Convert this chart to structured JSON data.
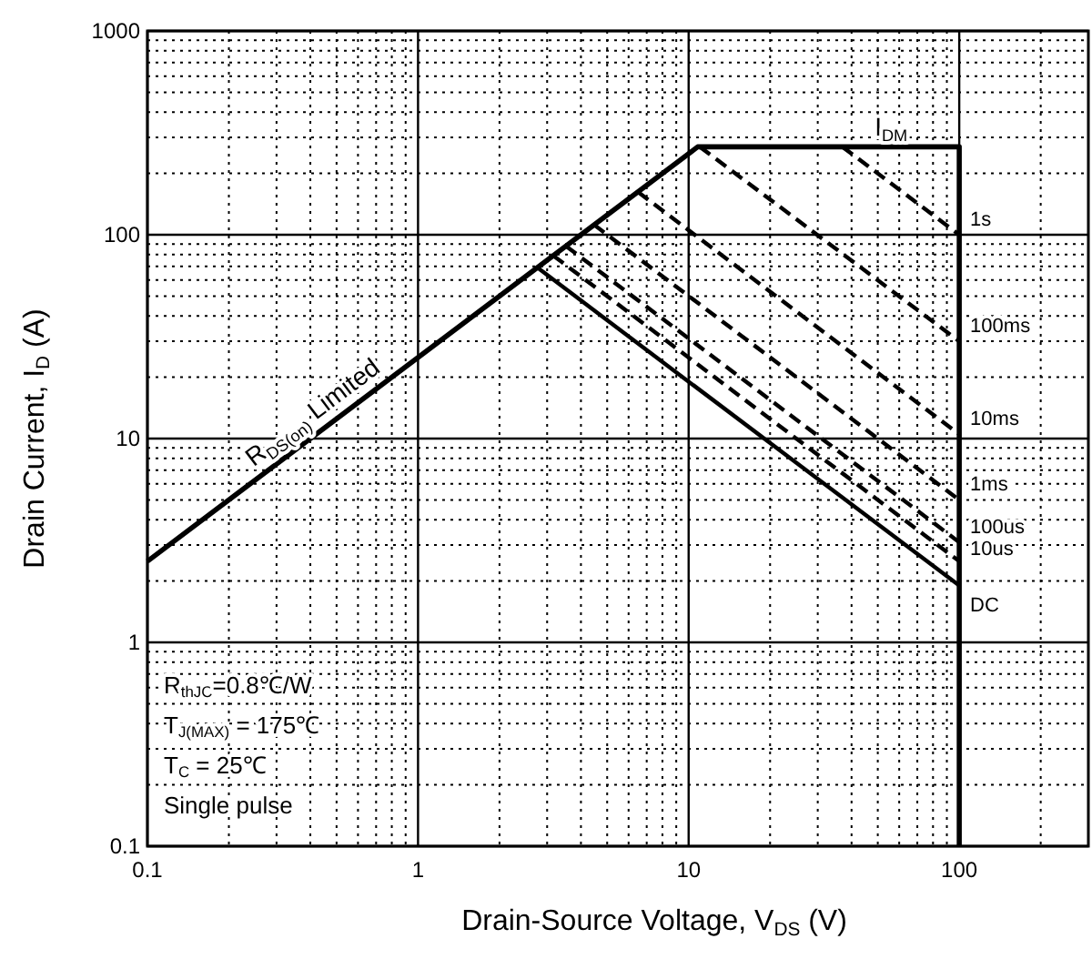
{
  "chart_data": {
    "type": "line",
    "log": "xy",
    "grid": true,
    "xlabel": "Drain-Source Voltage, V$_{DS}$ (V)",
    "ylabel": "Drain Current, I$_{D}$ (A)",
    "xlim": [
      0.1,
      300
    ],
    "ylim": [
      0.1,
      1000
    ],
    "xticks": [
      0.1,
      1,
      10,
      100
    ],
    "yticks": [
      0.1,
      1,
      10,
      100,
      1000
    ],
    "series": [
      {
        "color": "#000000",
        "line_style": "solid",
        "x": [
          0.1,
          10.8,
          100,
          100
        ],
        "values": [
          2.5,
          270,
          270,
          0.1
        ]
      },
      {
        "name": "1s",
        "color": "#000000",
        "line_style": "dashed",
        "x": [
          37,
          100
        ],
        "values": [
          270,
          100
        ]
      },
      {
        "name": "100ms",
        "color": "#000000",
        "line_style": "dashed",
        "x": [
          11,
          100
        ],
        "values": [
          270,
          30
        ]
      },
      {
        "name": "10ms",
        "color": "#000000",
        "line_style": "dashed",
        "x": [
          6.5,
          100
        ],
        "values": [
          162,
          10.5
        ]
      },
      {
        "name": "1ms",
        "color": "#000000",
        "line_style": "dashed",
        "x": [
          4.47,
          100
        ],
        "values": [
          112,
          5
        ]
      },
      {
        "name": "100us",
        "color": "#000000",
        "line_style": "dashed",
        "x": [
          3.52,
          100
        ],
        "values": [
          88,
          3.1
        ]
      },
      {
        "name": "10us",
        "color": "#000000",
        "line_style": "dashed",
        "x": [
          3.16,
          100
        ],
        "values": [
          79,
          2.5
        ]
      },
      {
        "name": "DC",
        "color": "#000000",
        "line_style": "solid",
        "x": [
          2.76,
          100
        ],
        "values": [
          69,
          1.9
        ]
      }
    ],
    "annotations": [
      {
        "text": "R$_{DS(on)}$ Limited",
        "x": 0.45,
        "y": 11.3
      },
      {
        "text": "I$_{DM}$",
        "x": 56,
        "y": 270
      },
      "R$_{thJC}$=0.8℃/W",
      "T$_{J(MAX)}$ = 175℃",
      "T$_{C}$ = 25℃",
      "Single pulse"
    ]
  }
}
